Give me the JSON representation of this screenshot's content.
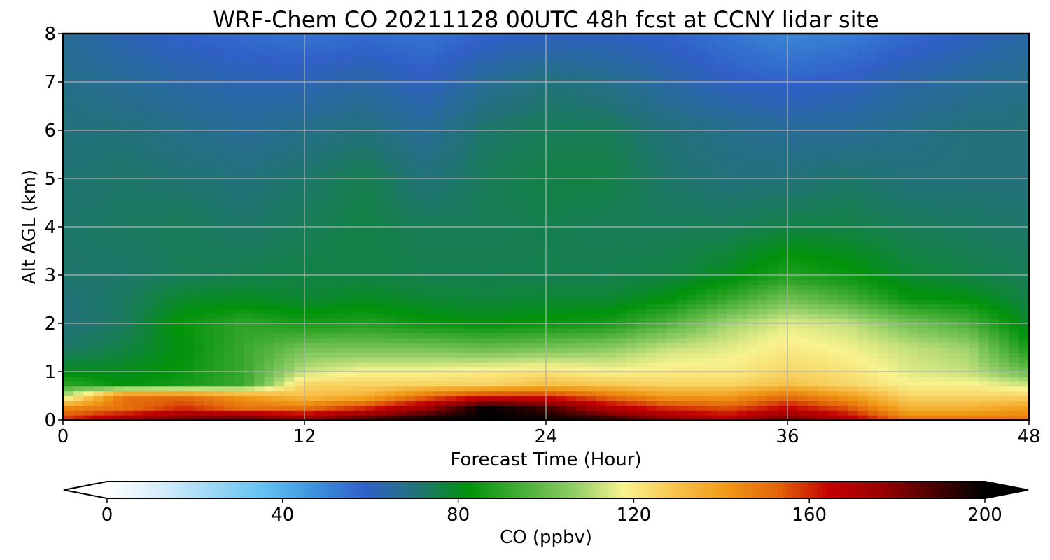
{
  "chart_data": {
    "type": "heatmap",
    "title": "WRF-Chem CO  20211128 00UTC 48h fcst at CCNY lidar site",
    "xlabel": "Forecast Time (Hour)",
    "ylabel": "Alt AGL (km)",
    "xlim": [
      0,
      48
    ],
    "ylim": [
      0,
      8
    ],
    "x_ticks": [
      "0",
      "12",
      "24",
      "36",
      "48"
    ],
    "y_ticks": [
      "0",
      "1",
      "2",
      "3",
      "4",
      "5",
      "6",
      "7",
      "8"
    ],
    "grid": true,
    "colorbar": {
      "label": "CO  (ppbv)",
      "range": [
        0,
        200
      ],
      "ticks": [
        "0",
        "40",
        "80",
        "120",
        "160",
        "200"
      ],
      "extend": "both",
      "colors": [
        "#ffffff",
        "#d8eefb",
        "#9fd8f6",
        "#66c3f3",
        "#3d93dc",
        "#3060c8",
        "#227377",
        "#00920a",
        "#45ad35",
        "#8dcc65",
        "#f8f38f",
        "#f8c44e",
        "#f09915",
        "#e2630a",
        "#c50000",
        "#9a0000",
        "#4a0000",
        "#000000"
      ]
    },
    "x": [
      0,
      3,
      6,
      9,
      12,
      15,
      18,
      21,
      24,
      27,
      30,
      33,
      36,
      39,
      42,
      45,
      48
    ],
    "y": [
      0.0,
      0.25,
      0.5,
      0.75,
      1.0,
      1.5,
      2.0,
      2.5,
      3.0,
      4.0,
      5.0,
      6.0,
      7.0,
      8.0
    ],
    "values": [
      [
        160,
        175,
        185,
        190,
        180,
        190,
        200,
        200,
        200,
        195,
        180,
        170,
        185,
        170,
        150,
        150,
        150
      ],
      [
        145,
        150,
        160,
        150,
        150,
        160,
        175,
        200,
        190,
        170,
        160,
        155,
        165,
        155,
        135,
        135,
        140
      ],
      [
        110,
        150,
        150,
        140,
        130,
        135,
        150,
        160,
        160,
        150,
        140,
        140,
        150,
        140,
        125,
        125,
        125
      ],
      [
        90,
        82,
        86,
        92,
        125,
        125,
        125,
        125,
        130,
        128,
        125,
        125,
        130,
        125,
        118,
        118,
        112
      ],
      [
        80,
        80,
        84,
        92,
        112,
        118,
        118,
        120,
        122,
        118,
        120,
        120,
        125,
        122,
        115,
        112,
        100
      ],
      [
        72,
        76,
        82,
        92,
        102,
        102,
        102,
        100,
        102,
        105,
        112,
        115,
        120,
        117,
        112,
        108,
        86
      ],
      [
        70,
        73,
        84,
        90,
        86,
        88,
        84,
        82,
        84,
        86,
        96,
        108,
        115,
        112,
        102,
        95,
        78
      ],
      [
        70,
        73,
        79,
        80,
        78,
        80,
        78,
        77,
        78,
        78,
        82,
        92,
        102,
        95,
        84,
        82,
        76
      ],
      [
        72,
        72,
        74,
        75,
        76,
        76,
        75,
        75,
        75,
        75,
        76,
        80,
        88,
        84,
        78,
        76,
        74
      ],
      [
        72,
        73,
        74,
        72,
        74,
        76,
        74,
        74,
        75,
        74,
        74,
        74,
        76,
        76,
        74,
        73,
        72
      ],
      [
        71,
        72,
        71,
        70,
        72,
        75,
        70,
        74,
        76,
        76,
        72,
        70,
        70,
        72,
        70,
        70,
        70
      ],
      [
        70,
        70,
        68,
        66,
        68,
        70,
        66,
        72,
        74,
        74,
        70,
        68,
        66,
        66,
        68,
        70,
        70
      ],
      [
        68,
        66,
        64,
        62,
        62,
        64,
        60,
        66,
        70,
        68,
        64,
        60,
        58,
        60,
        64,
        66,
        68
      ],
      [
        66,
        62,
        58,
        56,
        54,
        56,
        54,
        58,
        60,
        60,
        58,
        54,
        50,
        52,
        56,
        60,
        64
      ]
    ]
  }
}
